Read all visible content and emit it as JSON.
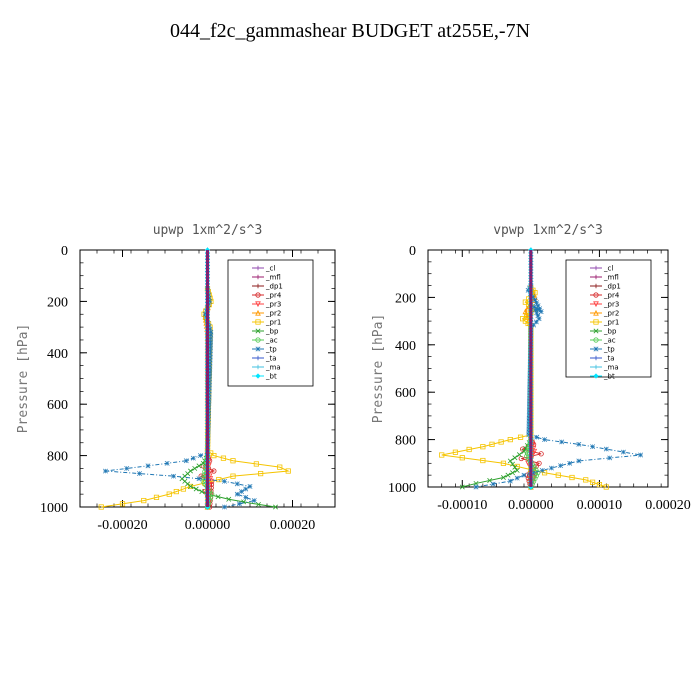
{
  "title": "044_f2c_gammashear  BUDGET at255E,-7N",
  "chart_data": [
    {
      "type": "line",
      "title": "upwp   1xm^2/s^3",
      "ylabel": "Pressure [hPa]",
      "xlim": [
        -0.0003,
        0.0003
      ],
      "ylim": [
        1000,
        0
      ],
      "xticks": [
        -0.0002,
        0.0,
        0.0002
      ],
      "xtick_labels": [
        "-0.00020",
        "0.00000",
        "0.00020"
      ],
      "yticks": [
        0,
        200,
        400,
        600,
        800,
        1000
      ],
      "ytick_labels": [
        "0",
        "200",
        "400",
        "600",
        "800",
        "1000"
      ],
      "legend_position": "top-right",
      "series": [
        {
          "name": "_cl",
          "color": "#8e44ad",
          "marker": "+",
          "x": [
            0,
            0
          ],
          "y": [
            0,
            1000
          ]
        },
        {
          "name": "_mfl",
          "color": "#9b1b6e",
          "marker": "+",
          "x": [
            0,
            0
          ],
          "y": [
            0,
            1000
          ]
        },
        {
          "name": "_dp1",
          "color": "#8b1a1a",
          "marker": "+",
          "x": [
            0,
            0,
            0
          ],
          "y": [
            0,
            500,
            1000
          ]
        },
        {
          "name": "_pr4",
          "color": "#d62728",
          "marker": "o",
          "x": [
            0,
            0,
            5e-06,
            -1e-05,
            1.5e-05,
            -1.5e-05,
            1e-05,
            5e-06
          ],
          "y": [
            780,
            800,
            820,
            840,
            860,
            880,
            900,
            1000
          ]
        },
        {
          "name": "_pr3",
          "color": "#ff4040",
          "marker": "v",
          "x": [
            0,
            3e-06,
            -3e-06,
            5e-06,
            8e-06,
            -6e-06,
            4e-06,
            0
          ],
          "y": [
            800,
            840,
            860,
            880,
            900,
            940,
            980,
            1000
          ]
        },
        {
          "name": "_pr2",
          "color": "#ff9900",
          "marker": "^",
          "x": [
            0,
            5e-06,
            -5e-06,
            0,
            0
          ],
          "y": [
            150,
            200,
            260,
            320,
            1000
          ]
        },
        {
          "name": "_pr1",
          "color": "#f5c400",
          "marker": "s",
          "x": [
            0,
            8e-06,
            -8e-06,
            6e-06,
            0,
            1.5e-05,
            6e-05,
            0.00017,
            0.00019,
            6e-05,
            -4e-05,
            -9e-05,
            -0.00015,
            -0.00025
          ],
          "y": [
            150,
            200,
            250,
            300,
            780,
            800,
            820,
            845,
            860,
            880,
            920,
            950,
            975,
            1000
          ]
        },
        {
          "name": "_bp",
          "color": "#2ca02c",
          "marker": "x",
          "x": [
            0,
            -1e-05,
            -4e-05,
            -6e-05,
            -4e-05,
            0,
            5e-05,
            0.00012,
            0.00016
          ],
          "y": [
            800,
            830,
            860,
            890,
            920,
            950,
            970,
            990,
            1000
          ]
        },
        {
          "name": "_ac",
          "color": "#55cc55",
          "marker": "o",
          "x": [
            0,
            -5e-06,
            -1e-05,
            1e-05,
            0
          ],
          "y": [
            800,
            850,
            900,
            950,
            1000
          ]
        },
        {
          "name": "_tp",
          "color": "#1f77b4",
          "marker": "*",
          "x": [
            0,
            5e-06,
            -5e-06,
            8e-06,
            0,
            -5e-05,
            -0.00014,
            -0.00024,
            -8e-05,
            4e-05,
            0.0001,
            7e-05,
            0.00011,
            4e-05
          ],
          "y": [
            150,
            200,
            250,
            320,
            790,
            820,
            840,
            860,
            880,
            900,
            920,
            950,
            975,
            1000
          ]
        },
        {
          "name": "_ta",
          "color": "#3355cc",
          "marker": "+",
          "x": [
            0,
            0
          ],
          "y": [
            0,
            1000
          ]
        },
        {
          "name": "_ma",
          "color": "#40c0e0",
          "marker": "-",
          "x": [
            0,
            0
          ],
          "y": [
            0,
            1000
          ]
        },
        {
          "name": "_bt",
          "color": "#00e5ff",
          "marker": "D",
          "x": [
            0,
            0
          ],
          "y": [
            0,
            1000
          ]
        }
      ]
    },
    {
      "type": "line",
      "title": "vpwp   1xm^2/s^3",
      "ylabel": "Pressure [hPa]",
      "xlim": [
        -0.00015,
        0.0002
      ],
      "ylim": [
        1000,
        0
      ],
      "xticks": [
        -0.0001,
        0.0,
        0.0001,
        0.0002
      ],
      "xtick_labels": [
        "-0.00010",
        "0.00000",
        "0.00010",
        "0.00020"
      ],
      "yticks": [
        0,
        200,
        400,
        600,
        800,
        1000
      ],
      "ytick_labels": [
        "0",
        "200",
        "400",
        "600",
        "800",
        "1000"
      ],
      "legend_position": "top-right",
      "series": [
        {
          "name": "_cl",
          "color": "#8e44ad",
          "marker": "+",
          "x": [
            0,
            0
          ],
          "y": [
            0,
            1000
          ]
        },
        {
          "name": "_mfl",
          "color": "#9b1b6e",
          "marker": "+",
          "x": [
            0,
            0
          ],
          "y": [
            0,
            1000
          ]
        },
        {
          "name": "_dp1",
          "color": "#8b1a1a",
          "marker": "+",
          "x": [
            0,
            0,
            0
          ],
          "y": [
            0,
            500,
            1000
          ]
        },
        {
          "name": "_pr4",
          "color": "#d62728",
          "marker": "o",
          "x": [
            0,
            4e-06,
            -1.2e-05,
            1.5e-05,
            -1.4e-05,
            1.2e-05,
            -5e-06,
            0
          ],
          "y": [
            800,
            820,
            840,
            860,
            880,
            900,
            950,
            1000
          ]
        },
        {
          "name": "_pr3",
          "color": "#ff4040",
          "marker": "v",
          "x": [
            0,
            5e-06,
            -4e-06,
            6e-06,
            0
          ],
          "y": [
            800,
            850,
            900,
            950,
            1000
          ]
        },
        {
          "name": "_pr2",
          "color": "#ff9900",
          "marker": "^",
          "x": [
            0,
            6e-06,
            -8e-06,
            0,
            0
          ],
          "y": [
            150,
            200,
            260,
            320,
            1000
          ]
        },
        {
          "name": "_pr1",
          "color": "#f5c400",
          "marker": "s",
          "x": [
            0,
            6e-06,
            -8e-06,
            6e-06,
            -1.2e-05,
            0,
            0,
            -3e-05,
            -7e-05,
            -0.00013,
            -4e-05,
            2e-05,
            8e-05,
            0.00011
          ],
          "y": [
            160,
            180,
            220,
            250,
            290,
            320,
            780,
            800,
            830,
            865,
            900,
            940,
            970,
            1000
          ]
        },
        {
          "name": "_bp",
          "color": "#2ca02c",
          "marker": "x",
          "x": [
            0,
            -1e-05,
            -3e-05,
            -2e-05,
            -4e-05,
            -8e-05,
            -0.0001
          ],
          "y": [
            800,
            850,
            890,
            930,
            960,
            985,
            1000
          ]
        },
        {
          "name": "_ac",
          "color": "#55cc55",
          "marker": "o",
          "x": [
            0,
            -6e-06,
            1e-05,
            0
          ],
          "y": [
            800,
            870,
            940,
            1000
          ]
        },
        {
          "name": "_tp",
          "color": "#1f77b4",
          "marker": "*",
          "x": [
            0,
            -4e-06,
            6e-06,
            1.5e-05,
            5e-06,
            1.2e-05,
            0,
            -3e-06,
            2e-05,
            7e-05,
            0.00011,
            0.00016,
            7e-05,
            3e-05,
            -1e-05,
            -3e-05,
            -8e-05
          ],
          "y": [
            150,
            170,
            210,
            260,
            240,
            290,
            330,
            780,
            800,
            820,
            840,
            865,
            890,
            920,
            950,
            975,
            1000
          ]
        },
        {
          "name": "_ta",
          "color": "#3355cc",
          "marker": "+",
          "x": [
            0,
            0
          ],
          "y": [
            0,
            1000
          ]
        },
        {
          "name": "_ma",
          "color": "#40c0e0",
          "marker": "-",
          "x": [
            0,
            0
          ],
          "y": [
            0,
            1000
          ]
        },
        {
          "name": "_bt",
          "color": "#00e5ff",
          "marker": "D",
          "x": [
            0,
            0
          ],
          "y": [
            0,
            1000
          ]
        }
      ]
    }
  ]
}
